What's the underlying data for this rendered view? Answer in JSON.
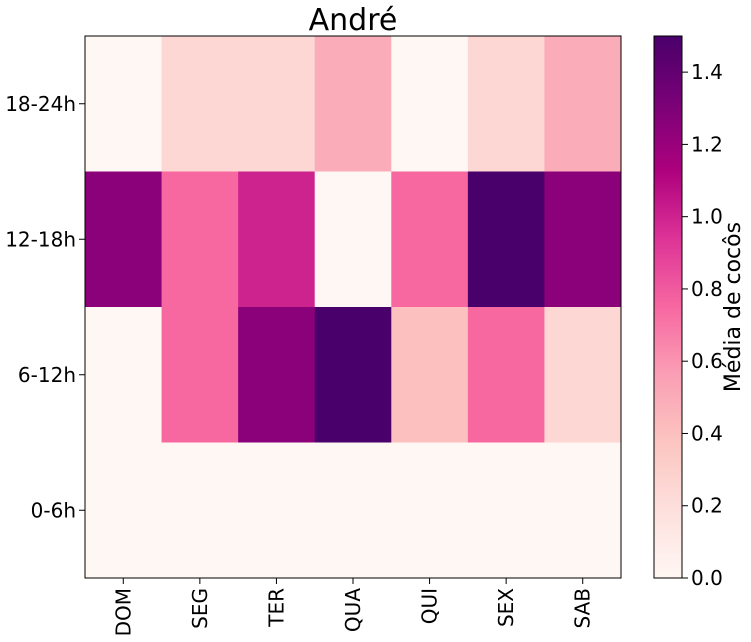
{
  "chart_data": {
    "type": "heatmap",
    "title": "André",
    "x_categories": [
      "DOM",
      "SEG",
      "TER",
      "QUA",
      "QUI",
      "SEX",
      "SAB"
    ],
    "y_categories": [
      "18-24h",
      "12-18h",
      "6-12h",
      "0-6h"
    ],
    "values": [
      [
        0.0,
        0.25,
        0.25,
        0.5,
        0.0,
        0.25,
        0.5
      ],
      [
        1.25,
        0.75,
        1.0,
        0.0,
        0.75,
        1.5,
        1.25
      ],
      [
        0.0,
        0.75,
        1.25,
        1.5,
        0.4,
        0.75,
        0.25
      ],
      [
        0.0,
        0.0,
        0.0,
        0.0,
        0.0,
        0.0,
        0.0
      ]
    ],
    "colorbar": {
      "label": "Média de cocôs",
      "range": [
        0.0,
        1.5
      ],
      "ticks": [
        "0.0",
        "0.2",
        "0.4",
        "0.6",
        "0.8",
        "1.0",
        "1.2",
        "1.4"
      ],
      "colormap": "RdPu",
      "stops": [
        "#fff7f3",
        "#fde0dd",
        "#fcc5c0",
        "#fa9fb5",
        "#f768a1",
        "#dd3497",
        "#ae017e",
        "#7a0177",
        "#49006a"
      ]
    }
  }
}
